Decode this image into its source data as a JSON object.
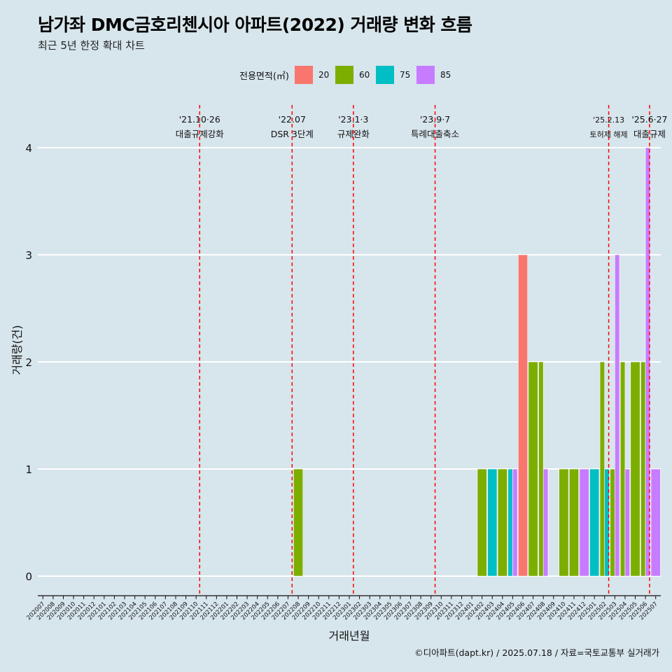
{
  "header": {
    "title": "남가좌 DMC금호리첸시아 아파트(2022) 거래량 변화 흐름",
    "subtitle": "최근 5년 한정 확대 차트"
  },
  "legend": {
    "title": "전용면적(㎡)",
    "items": [
      {
        "label": "20",
        "color": "#f8766d"
      },
      {
        "label": "60",
        "color": "#7cae00"
      },
      {
        "label": "75",
        "color": "#00bfc4"
      },
      {
        "label": "85",
        "color": "#c77cff"
      }
    ]
  },
  "caption": "©디아파트(dapt.kr) / 2025.07.18 / 자료=국토교통부 실거래가",
  "chart_data": {
    "type": "bar",
    "xlabel": "거래년월",
    "ylabel": "거래량(건)",
    "ylim": [
      0,
      4
    ],
    "yticks": [
      0,
      1,
      2,
      3,
      4
    ],
    "categories": [
      "202007",
      "202008",
      "202009",
      "202010",
      "202011",
      "202012",
      "202101",
      "202102",
      "202103",
      "202104",
      "202105",
      "202106",
      "202107",
      "202108",
      "202109",
      "202110",
      "202111",
      "202112",
      "202201",
      "202202",
      "202203",
      "202204",
      "202205",
      "202206",
      "202207",
      "202208",
      "202209",
      "202210",
      "202211",
      "202212",
      "202301",
      "202302",
      "202303",
      "202304",
      "202305",
      "202306",
      "202307",
      "202308",
      "202309",
      "202310",
      "202311",
      "202312",
      "202401",
      "202402",
      "202403",
      "202404",
      "202405",
      "202406",
      "202407",
      "202408",
      "202409",
      "202410",
      "202411",
      "202412",
      "202501",
      "202502",
      "202503",
      "202504",
      "202505",
      "202506",
      "202507"
    ],
    "series_colors": {
      "20": "#f8766d",
      "60": "#7cae00",
      "75": "#00bfc4",
      "85": "#c77cff"
    },
    "bars": [
      {
        "month": "202208",
        "values": [
          {
            "area": "60",
            "count": 1
          }
        ]
      },
      {
        "month": "202402",
        "values": [
          {
            "area": "60",
            "count": 1
          }
        ]
      },
      {
        "month": "202403",
        "values": [
          {
            "area": "75",
            "count": 1
          }
        ]
      },
      {
        "month": "202404",
        "values": [
          {
            "area": "60",
            "count": 1
          }
        ]
      },
      {
        "month": "202405",
        "values": [
          {
            "area": "75",
            "count": 1
          },
          {
            "area": "85",
            "count": 1
          }
        ]
      },
      {
        "month": "202406",
        "values": [
          {
            "area": "20",
            "count": 3
          }
        ]
      },
      {
        "month": "202407",
        "values": [
          {
            "area": "60",
            "count": 2
          }
        ]
      },
      {
        "month": "202408",
        "values": [
          {
            "area": "60",
            "count": 2
          },
          {
            "area": "85",
            "count": 1
          }
        ]
      },
      {
        "month": "202410",
        "values": [
          {
            "area": "60",
            "count": 1
          }
        ]
      },
      {
        "month": "202411",
        "values": [
          {
            "area": "60",
            "count": 1
          }
        ]
      },
      {
        "month": "202412",
        "values": [
          {
            "area": "85",
            "count": 1
          }
        ]
      },
      {
        "month": "202501",
        "values": [
          {
            "area": "75",
            "count": 1
          }
        ]
      },
      {
        "month": "202502",
        "values": [
          {
            "area": "60",
            "count": 2
          },
          {
            "area": "75",
            "count": 1
          }
        ]
      },
      {
        "month": "202503",
        "values": [
          {
            "area": "60",
            "count": 1
          },
          {
            "area": "85",
            "count": 3
          }
        ]
      },
      {
        "month": "202504",
        "values": [
          {
            "area": "60",
            "count": 2
          },
          {
            "area": "85",
            "count": 1
          }
        ]
      },
      {
        "month": "202505",
        "values": [
          {
            "area": "60",
            "count": 2
          }
        ]
      },
      {
        "month": "202506",
        "values": [
          {
            "area": "60",
            "count": 2
          },
          {
            "area": "85",
            "count": 4
          }
        ]
      },
      {
        "month": "202507",
        "values": [
          {
            "area": "85",
            "count": 1
          }
        ]
      }
    ],
    "annotations": [
      {
        "month_pos": 15.35,
        "date": "'21.10·26",
        "label": "대출규제강화",
        "size": "normal"
      },
      {
        "month_pos": 24.4,
        "date": "'22.07",
        "label": "DSR 3단계",
        "size": "normal"
      },
      {
        "month_pos": 30.4,
        "date": "'23.1·3",
        "label": "규제완화",
        "size": "normal"
      },
      {
        "month_pos": 38.4,
        "date": "'23.9·7",
        "label": "특례대출축소",
        "size": "normal"
      },
      {
        "month_pos": 55.4,
        "date": "'25.2.13",
        "label": "토허제 해제",
        "size": "small"
      },
      {
        "month_pos": 59.4,
        "date": "'25.6·27",
        "label": "대출규제",
        "size": "normal"
      }
    ],
    "annotation_color": "#ff0000"
  }
}
